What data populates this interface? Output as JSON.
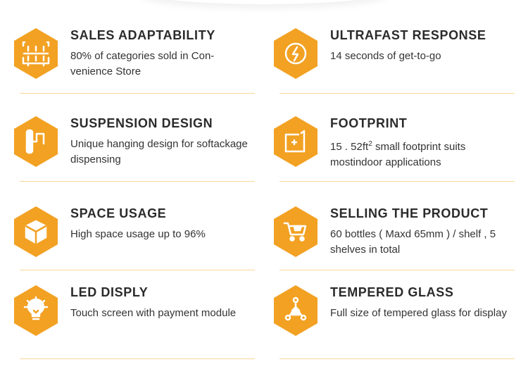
{
  "accent": "#f2a122",
  "features": [
    {
      "title": "SALES ADAPTABILITY",
      "desc": "80% of categories sold in Con-venience Store",
      "icon": "shelf-icon"
    },
    {
      "title": "ULTRAFAST RESPONSE",
      "desc": "14 seconds of get-to-go",
      "icon": "lightning-icon"
    },
    {
      "title": "SUSPENSION DESIGN",
      "desc": "Unique hanging design for softackage dispensing",
      "icon": "hanger-icon"
    },
    {
      "title": "FOOTPRINT",
      "desc_pre": "15 . 52ft",
      "desc_sup": "2",
      "desc_post": " small footprint suits mostindoor applications",
      "icon": "footprint-icon"
    },
    {
      "title": "SPACE USAGE",
      "desc": "High space usage up to 96%",
      "icon": "cube-icon"
    },
    {
      "title": "SELLING THE PRODUCT",
      "desc": "60 bottles ( Maxd 65mm ) / shelf , 5 shelves in total",
      "icon": "cart-icon"
    },
    {
      "title": "LED DISPLY",
      "desc": "Touch screen with payment module",
      "icon": "lightbulb-icon"
    },
    {
      "title": "TEMPERED GLASS",
      "desc": "Full size of tempered glass for display",
      "icon": "molecule-icon"
    }
  ]
}
